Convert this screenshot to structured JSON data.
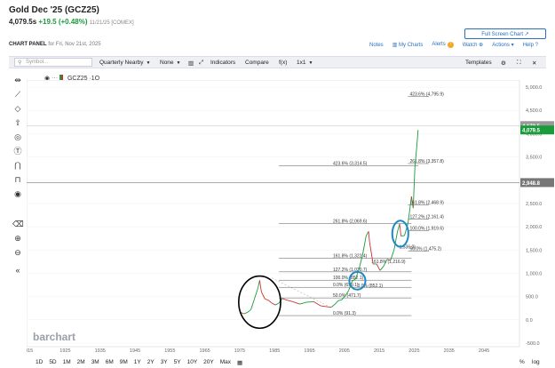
{
  "header": {
    "title": "Gold Dec '25 (GCZ25)",
    "last": "4,079.5s",
    "change": "+19.5 (+0.48%)",
    "meta": "11/21/25 [COMEX]"
  },
  "panel": {
    "label": "CHART PANEL",
    "sub": " for Fri, Nov 21st, 2025"
  },
  "buttons": {
    "fullscreen": "Full Screen Chart ↗",
    "notes": "Notes",
    "my_charts": "My Charts",
    "alerts": "Alerts",
    "alerts_count": "!",
    "watch": "Watch",
    "actions": "Actions",
    "help": "Help"
  },
  "toolbar": {
    "symbol_placeholder": "Symbol...",
    "aggregation": "Quarterly Nearby",
    "none": "None",
    "indicators": "Indicators",
    "compare": "Compare",
    "fx": "f(x)",
    "layout": "1x1",
    "templates": "Templates"
  },
  "series_label": "GCZ25 ·1Q",
  "watermark": "barchart",
  "periods": [
    "1D",
    "5D",
    "1M",
    "2M",
    "3M",
    "6M",
    "9M",
    "1Y",
    "2Y",
    "3Y",
    "5Y",
    "10Y",
    "20Y",
    "Max"
  ],
  "scale_buttons": {
    "pct": "%",
    "log": "log"
  },
  "colors": {
    "up": "#1a9b3c",
    "down": "#d0312d",
    "accent": "#2b6fc2",
    "circle_blue": "#1e88c8"
  },
  "chart_data": {
    "type": "line",
    "x_ticks": [
      "015",
      "1925",
      "1935",
      "1945",
      "1955",
      "1965",
      "1975",
      "1985",
      "1995",
      "2005",
      "2015",
      "2025",
      "2035",
      "2045"
    ],
    "y_ticks": [
      "5,000.0",
      "4,500.0",
      "4,000.0",
      "3,500.0",
      "3,000.0",
      "2,500.0",
      "2,000.0",
      "1,500.0",
      "1,000.0",
      "500.0",
      "0.0",
      "-500.0"
    ],
    "ylim": [
      -500,
      5000
    ],
    "price_tag": "4,079.5",
    "crosshair_tag": "2,948.8",
    "crosshair_value": 2948.8,
    "upper_tag": "4,173.5",
    "series": [
      {
        "name": "GCZ25",
        "x": [
          1975,
          1976,
          1977,
          1978,
          1979,
          1980,
          1980.5,
          1981,
          1982,
          1983,
          1984,
          1985,
          1986,
          1987,
          1988,
          1990,
          1992,
          1994,
          1996,
          1998,
          2000,
          2001,
          2002,
          2003,
          2004,
          2005,
          2006,
          2007,
          2008,
          2009,
          2010,
          2011,
          2011.7,
          2012,
          2013,
          2014,
          2015,
          2016,
          2017,
          2018,
          2019,
          2020,
          2020.6,
          2021,
          2022,
          2023,
          2024,
          2024.5,
          2025,
          2025.5,
          2025.9
        ],
        "y": [
          160,
          130,
          160,
          220,
          450,
          680,
          850,
          600,
          450,
          420,
          360,
          320,
          360,
          460,
          430,
          390,
          340,
          380,
          390,
          300,
          280,
          270,
          330,
          410,
          430,
          510,
          630,
          830,
          880,
          1100,
          1400,
          1800,
          1900,
          1670,
          1200,
          1200,
          1060,
          1150,
          1300,
          1280,
          1500,
          1900,
          2060,
          1800,
          1810,
          2070,
          2650,
          2400,
          3300,
          3700,
          4079.5
        ]
      }
    ],
    "fib_levels": [
      {
        "label": "423.6% (4,795.9)",
        "value": 4795.9,
        "x1": 2023,
        "x2": 2029
      },
      {
        "label": "261.8% (3,357.8)",
        "value": 3357.8,
        "x1": 2023,
        "x2": 2029
      },
      {
        "label": "423.6% (3,314.5)",
        "value": 3314.5,
        "x1": 1986,
        "x2": 2026
      },
      {
        "label": "161.8% (2,468.9)",
        "value": 2468.9,
        "x1": 2023,
        "x2": 2029
      },
      {
        "label": "127.2% (2,161.4)",
        "value": 2161.4,
        "x1": 2023,
        "x2": 2029
      },
      {
        "label": "261.8% (2,069.6)",
        "value": 2069.6,
        "x1": 1986,
        "x2": 2024
      },
      {
        "label": "100.0% (1,919.6)",
        "value": 1919.6,
        "x1": 2023,
        "x2": 2029
      },
      {
        "label": "50.0% (1,475.2)",
        "value": 1475.2,
        "x1": 2023,
        "x2": 2029
      },
      {
        "label": "161.8% (1,322.4)",
        "value": 1322.4,
        "x1": 1986,
        "x2": 2024
      },
      {
        "label": "127.2% (1,030.7)",
        "value": 1030.7,
        "x1": 1986,
        "x2": 2024
      },
      {
        "label": "100.0% (852.1)",
        "value": 852.1,
        "x1": 1986,
        "x2": 2024
      },
      {
        "label": "0.0% (699.1)",
        "value": 699.1,
        "x1": 1986,
        "x2": 2024
      },
      {
        "label": "50.0% (471.7)",
        "value": 471.7,
        "x1": 1986,
        "x2": 2024
      },
      {
        "label": "0.0% (91.3)",
        "value": 91.3,
        "x1": 1986,
        "x2": 2024
      }
    ],
    "extra_labels": [
      {
        "label": "1,536.0)",
        "value": 1536.0,
        "x": 2020.5
      },
      {
        "label": "161.8% (1,216.9)",
        "value": 1216.9,
        "x": 2012.5
      },
      {
        "label": "0.0% (852.1)",
        "value": 700,
        "x": 2008.5
      }
    ],
    "annotations": [
      {
        "shape": "ellipse",
        "color": "black",
        "cx": 1980.5,
        "cy": 380,
        "rx_years": 6,
        "ry_value": 560
      },
      {
        "shape": "ellipse",
        "color": "blue",
        "cx": 2008.5,
        "cy": 840,
        "rx_years": 2.3,
        "ry_value": 190
      },
      {
        "shape": "ellipse",
        "color": "blue",
        "cx": 2020.8,
        "cy": 1850,
        "rx_years": 2.3,
        "ry_value": 280
      }
    ]
  }
}
